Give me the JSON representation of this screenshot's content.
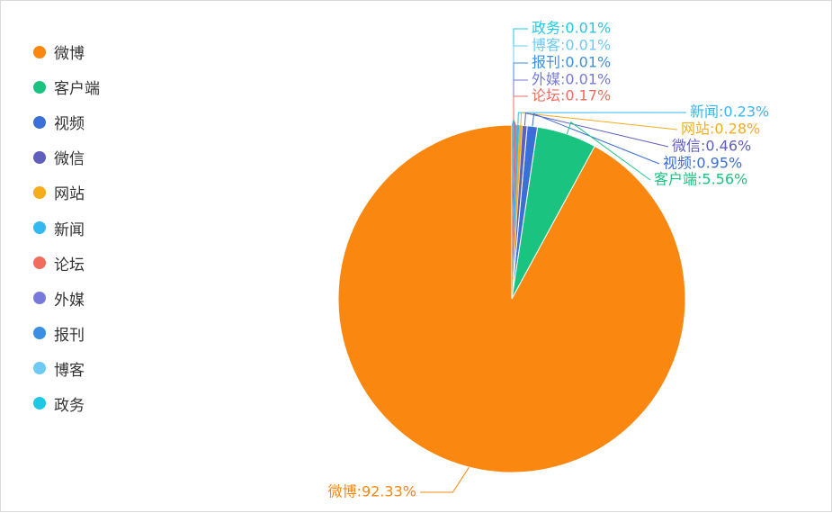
{
  "chart_data": {
    "type": "pie",
    "title": "",
    "legend_position": "left",
    "series": [
      {
        "name": "微博",
        "value": 92.33,
        "label": "微博:92.33%",
        "color": "#fa870f"
      },
      {
        "name": "客户端",
        "value": 5.56,
        "label": "客户端:5.56%",
        "color": "#1bc381"
      },
      {
        "name": "视频",
        "value": 0.95,
        "label": "视频:0.95%",
        "color": "#3a6fd6"
      },
      {
        "name": "微信",
        "value": 0.46,
        "label": "微信:0.46%",
        "color": "#5e5fbf"
      },
      {
        "name": "网站",
        "value": 0.28,
        "label": "网站:0.28%",
        "color": "#f6ad1b"
      },
      {
        "name": "新闻",
        "value": 0.23,
        "label": "新闻:0.23%",
        "color": "#33b8f0"
      },
      {
        "name": "论坛",
        "value": 0.17,
        "label": "论坛:0.17%",
        "color": "#ef6c5f"
      },
      {
        "name": "外媒",
        "value": 0.01,
        "label": "外媒:0.01%",
        "color": "#7679d9"
      },
      {
        "name": "报刊",
        "value": 0.01,
        "label": "报刊:0.01%",
        "color": "#3b8fe3"
      },
      {
        "name": "博客",
        "value": 0.01,
        "label": "博客:0.01%",
        "color": "#6ccaf5"
      },
      {
        "name": "政务",
        "value": 0.01,
        "label": "政务:0.01%",
        "color": "#1fc9e6"
      }
    ]
  }
}
